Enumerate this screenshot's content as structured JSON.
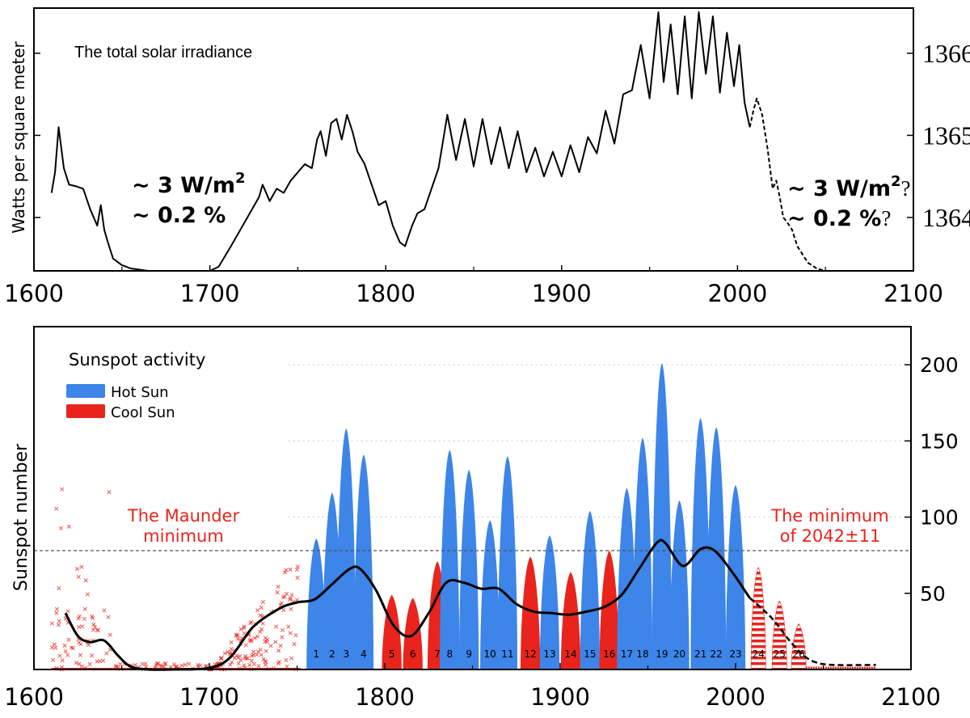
{
  "chart_data": [
    {
      "type": "line",
      "title": "The total solar irradiance",
      "ylabel": "Watts per square meter",
      "xlim": [
        1600,
        2100
      ],
      "ylim": [
        1363.35,
        1366.55
      ],
      "x_ticks": [
        "1600",
        "1700",
        "1800",
        "1900",
        "2000",
        "2100"
      ],
      "y_ticks": [
        "1364",
        "1365",
        "1366"
      ],
      "annotations": {
        "left_line1": "~ 3 W/m",
        "left_line2": "~ 0.2 %",
        "right_line1": "~ 3 W/m",
        "right_line2": "~ 0.2 %",
        "superscript": "2",
        "question": "?"
      },
      "series": [
        {
          "style": "solid",
          "x": [
            1610,
            1612,
            1614,
            1617,
            1620,
            1624,
            1628,
            1632,
            1636,
            1638,
            1640,
            1642,
            1645,
            1650,
            1655,
            1665,
            1680,
            1700,
            1705,
            1712,
            1720,
            1728,
            1730,
            1734,
            1738,
            1742,
            1746,
            1750,
            1754,
            1758,
            1761,
            1763,
            1766,
            1769,
            1772,
            1775,
            1778,
            1781,
            1784,
            1788,
            1792,
            1796,
            1800,
            1804,
            1808,
            1811,
            1815,
            1818,
            1822,
            1826,
            1830,
            1835,
            1840,
            1845,
            1850,
            1855,
            1860,
            1865,
            1870,
            1875,
            1880,
            1885,
            1890,
            1895,
            1900,
            1905,
            1910,
            1915,
            1920,
            1925,
            1930,
            1935,
            1940,
            1945,
            1950,
            1955,
            1958,
            1962,
            1966,
            1970,
            1974,
            1978,
            1982,
            1986,
            1990,
            1994,
            1998,
            2001,
            2004,
            2007
          ],
          "y": [
            1364.3,
            1364.55,
            1365.1,
            1364.6,
            1364.4,
            1364.38,
            1364.35,
            1364.1,
            1363.9,
            1364.15,
            1363.85,
            1363.7,
            1363.5,
            1363.42,
            1363.38,
            1363.35,
            1363.35,
            1363.35,
            1363.4,
            1363.65,
            1363.95,
            1364.25,
            1364.4,
            1364.2,
            1364.35,
            1364.3,
            1364.45,
            1364.55,
            1364.65,
            1364.6,
            1364.95,
            1365.05,
            1364.75,
            1365.15,
            1365.2,
            1364.95,
            1365.25,
            1365.05,
            1364.8,
            1364.65,
            1364.4,
            1364.15,
            1364.2,
            1363.9,
            1363.7,
            1363.65,
            1363.9,
            1364.05,
            1364.1,
            1364.35,
            1364.6,
            1365.25,
            1364.7,
            1365.2,
            1364.62,
            1365.2,
            1364.65,
            1365.1,
            1364.6,
            1365.05,
            1364.55,
            1364.85,
            1364.5,
            1364.8,
            1364.5,
            1364.88,
            1364.55,
            1364.98,
            1364.78,
            1365.3,
            1364.9,
            1365.5,
            1365.55,
            1366.1,
            1365.45,
            1366.5,
            1365.65,
            1366.35,
            1365.5,
            1366.45,
            1365.45,
            1366.5,
            1365.75,
            1366.45,
            1365.52,
            1366.25,
            1365.6,
            1366.1,
            1365.4,
            1365.1
          ]
        },
        {
          "style": "dashed",
          "x": [
            2007,
            2009,
            2011,
            2014,
            2017,
            2020,
            2022,
            2024,
            2026,
            2028,
            2031,
            2034,
            2037,
            2040,
            2045,
            2050,
            2060,
            2070,
            2080
          ],
          "y": [
            1365.1,
            1365.3,
            1365.45,
            1365.25,
            1364.85,
            1364.35,
            1364.45,
            1364.25,
            1364.0,
            1363.95,
            1363.85,
            1363.65,
            1363.55,
            1363.45,
            1363.38,
            1363.35,
            1363.35,
            1363.35,
            1363.35
          ]
        }
      ]
    },
    {
      "type": "area",
      "title": "Sunspot activity",
      "ylabel": "Sunspot number",
      "xlim": [
        1600,
        2100
      ],
      "ylim": [
        0,
        225
      ],
      "x_ticks": [
        "1600",
        "1700",
        "1800",
        "1900",
        "2000",
        "2100"
      ],
      "y_ticks": [
        "50",
        "100",
        "150",
        "200"
      ],
      "reference_line": 78,
      "legend": {
        "placement": "top-left",
        "items": [
          {
            "label": "Hot Sun",
            "color": "#3d85e8"
          },
          {
            "label": "Cool Sun",
            "color": "#e8241c"
          }
        ]
      },
      "annotations": {
        "maunder_line1": "The Maunder",
        "maunder_line2": "minimum",
        "forecast_line1": "The minimum",
        "forecast_line2": "of 2042±11"
      },
      "cycles": [
        {
          "label": "1",
          "peak_year": 1761,
          "peak": 86,
          "kind": "hot"
        },
        {
          "label": "2",
          "peak_year": 1770,
          "peak": 116,
          "kind": "hot"
        },
        {
          "label": "3",
          "peak_year": 1778,
          "peak": 158,
          "kind": "hot"
        },
        {
          "label": "4",
          "peak_year": 1788,
          "peak": 141,
          "kind": "hot"
        },
        {
          "label": "5",
          "peak_year": 1804,
          "peak": 49,
          "kind": "cool"
        },
        {
          "label": "6",
          "peak_year": 1816,
          "peak": 47,
          "kind": "cool"
        },
        {
          "label": "7",
          "peak_year": 1830,
          "peak": 71,
          "kind": "cool"
        },
        {
          "label": "8",
          "peak_year": 1837,
          "peak": 144,
          "kind": "hot"
        },
        {
          "label": "9",
          "peak_year": 1848,
          "peak": 131,
          "kind": "hot"
        },
        {
          "label": "10",
          "peak_year": 1860,
          "peak": 98,
          "kind": "hot"
        },
        {
          "label": "11",
          "peak_year": 1870,
          "peak": 140,
          "kind": "hot"
        },
        {
          "label": "12",
          "peak_year": 1883,
          "peak": 74,
          "kind": "cool"
        },
        {
          "label": "13",
          "peak_year": 1894,
          "peak": 88,
          "kind": "hot"
        },
        {
          "label": "14",
          "peak_year": 1906,
          "peak": 64,
          "kind": "cool"
        },
        {
          "label": "15",
          "peak_year": 1917,
          "peak": 104,
          "kind": "hot"
        },
        {
          "label": "16",
          "peak_year": 1928,
          "peak": 78,
          "kind": "cool"
        },
        {
          "label": "17",
          "peak_year": 1938,
          "peak": 119,
          "kind": "hot"
        },
        {
          "label": "18",
          "peak_year": 1947,
          "peak": 152,
          "kind": "hot"
        },
        {
          "label": "19",
          "peak_year": 1958,
          "peak": 201,
          "kind": "hot"
        },
        {
          "label": "20",
          "peak_year": 1968,
          "peak": 111,
          "kind": "hot"
        },
        {
          "label": "21",
          "peak_year": 1980,
          "peak": 165,
          "kind": "hot"
        },
        {
          "label": "22",
          "peak_year": 1989,
          "peak": 159,
          "kind": "hot"
        },
        {
          "label": "23",
          "peak_year": 2000,
          "peak": 121,
          "kind": "hot"
        },
        {
          "label": "24",
          "peak_year": 2013,
          "peak": 67,
          "kind": "forecast"
        },
        {
          "label": "25",
          "peak_year": 2025,
          "peak": 45,
          "kind": "forecast"
        },
        {
          "label": "26",
          "peak_year": 2036,
          "peak": 30,
          "kind": "forecast"
        }
      ],
      "smoothed": {
        "x": [
          1618,
          1625,
          1632,
          1640,
          1648,
          1655,
          1665,
          1680,
          1700,
          1712,
          1725,
          1740,
          1750,
          1760,
          1770,
          1780,
          1786,
          1795,
          1805,
          1815,
          1825,
          1835,
          1845,
          1855,
          1865,
          1875,
          1885,
          1895,
          1905,
          1915,
          1925,
          1935,
          1945,
          1955,
          1960,
          1970,
          1980,
          1988,
          1998,
          2008
        ],
        "y": [
          37,
          22,
          18,
          19,
          9,
          2,
          0,
          0,
          1,
          8,
          28,
          40,
          44,
          46,
          56,
          66,
          66,
          52,
          29,
          22,
          37,
          57,
          57,
          53,
          53,
          43,
          38,
          37,
          36,
          38,
          41,
          49,
          66,
          83,
          83,
          68,
          79,
          78,
          64,
          47
        ]
      },
      "forecast_line": {
        "x": [
          2008,
          2015,
          2022,
          2030,
          2038,
          2045,
          2055,
          2080
        ],
        "y": [
          47,
          40,
          32,
          20,
          10,
          5,
          3,
          3
        ]
      }
    }
  ]
}
